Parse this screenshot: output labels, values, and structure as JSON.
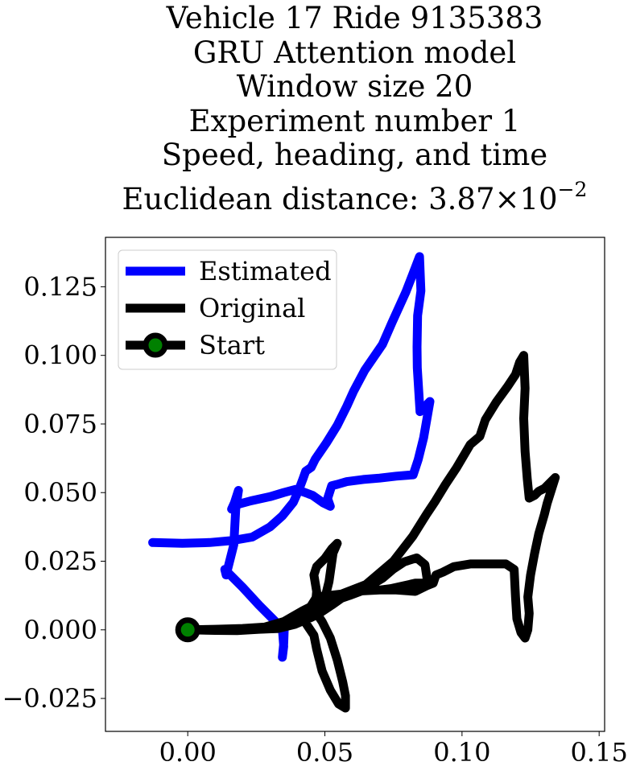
{
  "chart_data": {
    "type": "line",
    "title_lines": [
      "Vehicle 17 Ride 9135383",
      "GRU Attention model",
      "Window size 20",
      "Experiment number 1",
      "Speed, heading, and time"
    ],
    "distance_label": "Euclidean distance: ",
    "distance_mantissa": "3.87",
    "distance_times": "×",
    "distance_base": "10",
    "distance_exponent": "−2",
    "xlim": [
      -0.03,
      0.152
    ],
    "ylim": [
      -0.037,
      0.143
    ],
    "xticks": [
      0.0,
      0.05,
      0.1,
      0.15
    ],
    "xtick_labels": [
      "0.00",
      "0.05",
      "0.10",
      "0.15"
    ],
    "yticks": [
      -0.025,
      0.0,
      0.025,
      0.05,
      0.075,
      0.1,
      0.125
    ],
    "ytick_labels": [
      "−0.025",
      "0.000",
      "0.025",
      "0.050",
      "0.075",
      "0.100",
      "0.125"
    ],
    "legend_position": "upper-left",
    "series": [
      {
        "name": "Estimated",
        "color": "#0000ff",
        "points": [
          [
            -0.0128,
            0.0318
          ],
          [
            -0.002,
            0.0315
          ],
          [
            0.008,
            0.0318
          ],
          [
            0.016,
            0.0325
          ],
          [
            0.0235,
            0.0338
          ],
          [
            0.03,
            0.0375
          ],
          [
            0.0345,
            0.0415
          ],
          [
            0.0385,
            0.0465
          ],
          [
            0.0405,
            0.051
          ],
          [
            0.042,
            0.055
          ],
          [
            0.043,
            0.0578
          ],
          [
            0.045,
            0.0592
          ],
          [
            0.0465,
            0.0622
          ],
          [
            0.0505,
            0.068
          ],
          [
            0.0545,
            0.0745
          ],
          [
            0.058,
            0.0815
          ],
          [
            0.0605,
            0.087
          ],
          [
            0.0645,
            0.0945
          ],
          [
            0.071,
            0.104
          ],
          [
            0.0745,
            0.112
          ],
          [
            0.0795,
            0.123
          ],
          [
            0.083,
            0.132
          ],
          [
            0.0845,
            0.136
          ],
          [
            0.085,
            0.1235
          ],
          [
            0.0838,
            0.1145
          ],
          [
            0.0836,
            0.103
          ],
          [
            0.0837,
            0.0955
          ],
          [
            0.0847,
            0.0795
          ],
          [
            0.0883,
            0.0832
          ],
          [
            0.086,
            0.07
          ],
          [
            0.084,
            0.062
          ],
          [
            0.0822,
            0.0565
          ],
          [
            0.076,
            0.056
          ],
          [
            0.07,
            0.0553
          ],
          [
            0.064,
            0.0548
          ],
          [
            0.058,
            0.054
          ],
          [
            0.0545,
            0.053
          ],
          [
            0.0525,
            0.0525
          ],
          [
            0.051,
            0.0478
          ],
          [
            0.052,
            0.045
          ],
          [
            0.0495,
            0.0462
          ],
          [
            0.0455,
            0.049
          ],
          [
            0.0395,
            0.0512
          ],
          [
            0.035,
            0.05
          ],
          [
            0.03,
            0.0485
          ],
          [
            0.023,
            0.047
          ],
          [
            0.0175,
            0.0455
          ],
          [
            0.016,
            0.044
          ],
          [
            0.017,
            0.0462
          ],
          [
            0.0185,
            0.0508
          ],
          [
            0.0175,
            0.044
          ],
          [
            0.0168,
            0.031
          ],
          [
            0.014,
            0.02
          ],
          [
            0.0135,
            0.022
          ],
          [
            0.02,
            0.0155
          ],
          [
            0.026,
            0.009
          ],
          [
            0.032,
            0.003
          ],
          [
            0.0345,
            0.0005
          ],
          [
            0.035,
            -0.006
          ],
          [
            0.0345,
            -0.01
          ],
          [
            0.035,
            -0.005
          ],
          [
            0.0352,
            0.0005
          ],
          [
            0.032,
            0.0005
          ],
          [
            0.026,
            0.0003
          ],
          [
            0.02,
            0.0002
          ],
          [
            0.012,
            0.0001
          ],
          [
            0.0,
            0.0
          ]
        ]
      },
      {
        "name": "Original",
        "color": "#000000",
        "points": [
          [
            0.0,
            0.0
          ],
          [
            0.01,
            -0.0002
          ],
          [
            0.018,
            -0.0003
          ],
          [
            0.026,
            0.0002
          ],
          [
            0.033,
            0.0005
          ],
          [
            0.039,
            0.002
          ],
          [
            0.045,
            0.0045
          ],
          [
            0.048,
            0.006
          ],
          [
            0.0525,
            0.009
          ],
          [
            0.056,
            0.0115
          ],
          [
            0.059,
            0.0125
          ],
          [
            0.063,
            0.014
          ],
          [
            0.066,
            0.0158
          ],
          [
            0.071,
            0.0188
          ],
          [
            0.075,
            0.0222
          ],
          [
            0.079,
            0.0248
          ],
          [
            0.0835,
            0.0262
          ],
          [
            0.0865,
            0.0237
          ],
          [
            0.0875,
            0.017
          ],
          [
            0.083,
            0.017
          ],
          [
            0.074,
            0.015
          ],
          [
            0.07,
            0.0145
          ],
          [
            0.06,
            0.014
          ],
          [
            0.051,
            0.0115
          ],
          [
            0.048,
            0.01
          ],
          [
            0.0465,
            0.0085
          ],
          [
            0.047,
            0.014
          ],
          [
            0.046,
            0.02
          ],
          [
            0.047,
            0.023
          ],
          [
            0.05,
            0.026
          ],
          [
            0.0525,
            0.0295
          ],
          [
            0.0545,
            0.0315
          ],
          [
            0.053,
            0.028
          ],
          [
            0.0515,
            0.0175
          ],
          [
            0.05,
            0.0115
          ],
          [
            0.047,
            0.009
          ],
          [
            0.047,
            0.006
          ],
          [
            0.049,
            0.003
          ],
          [
            0.052,
            -0.003
          ],
          [
            0.0545,
            -0.011
          ],
          [
            0.0565,
            -0.019
          ],
          [
            0.0575,
            -0.024
          ],
          [
            0.0575,
            -0.0285
          ],
          [
            0.055,
            -0.027
          ],
          [
            0.052,
            -0.022
          ],
          [
            0.049,
            -0.015
          ],
          [
            0.047,
            -0.007
          ],
          [
            0.046,
            -0.002
          ],
          [
            0.044,
            0.001
          ],
          [
            0.042,
            0.004
          ],
          [
            0.047,
            0.012
          ],
          [
            0.056,
            0.013
          ],
          [
            0.065,
            0.0165
          ],
          [
            0.075,
            0.025
          ],
          [
            0.082,
            0.034
          ],
          [
            0.087,
            0.042
          ],
          [
            0.09,
            0.0465
          ],
          [
            0.094,
            0.053
          ],
          [
            0.098,
            0.059
          ],
          [
            0.103,
            0.0675
          ],
          [
            0.1065,
            0.0705
          ],
          [
            0.1085,
            0.0765
          ],
          [
            0.1125,
            0.083
          ],
          [
            0.1165,
            0.0885
          ],
          [
            0.1195,
            0.093
          ],
          [
            0.121,
            0.0975
          ],
          [
            0.1225,
            0.1
          ],
          [
            0.123,
            0.088
          ],
          [
            0.1225,
            0.077
          ],
          [
            0.123,
            0.065
          ],
          [
            0.1238,
            0.055
          ],
          [
            0.1245,
            0.048
          ],
          [
            0.1265,
            0.049
          ],
          [
            0.128,
            0.0505
          ],
          [
            0.13,
            0.0515
          ],
          [
            0.132,
            0.0535
          ],
          [
            0.134,
            0.0555
          ],
          [
            0.131,
            0.046
          ],
          [
            0.13,
            0.042
          ],
          [
            0.128,
            0.035
          ],
          [
            0.1265,
            0.028
          ],
          [
            0.125,
            0.02
          ],
          [
            0.1245,
            0.016
          ],
          [
            0.124,
            0.012
          ],
          [
            0.1245,
            0.006
          ],
          [
            0.124,
            0.0
          ],
          [
            0.123,
            -0.003
          ],
          [
            0.1215,
            -0.001
          ],
          [
            0.12,
            0.004
          ],
          [
            0.1195,
            0.012
          ],
          [
            0.1195,
            0.012
          ],
          [
            0.119,
            0.022
          ],
          [
            0.116,
            0.024
          ],
          [
            0.11,
            0.024
          ],
          [
            0.103,
            0.024
          ],
          [
            0.097,
            0.023
          ],
          [
            0.093,
            0.021
          ],
          [
            0.0905,
            0.02
          ],
          [
            0.0895,
            0.017
          ],
          [
            0.087,
            0.016
          ],
          [
            0.083,
            0.014
          ],
          [
            0.076,
            0.0145
          ],
          [
            0.07,
            0.0145
          ],
          [
            0.062,
            0.015
          ],
          [
            0.056,
            0.013
          ],
          [
            0.048,
            0.01
          ],
          [
            0.042,
            0.007
          ],
          [
            0.035,
            0.003
          ],
          [
            0.028,
            0.001
          ],
          [
            0.02,
            0.0005
          ],
          [
            0.01,
            0.0002
          ],
          [
            0.0,
            0.0
          ]
        ]
      }
    ],
    "start_point": {
      "name": "Start",
      "x": 0.0,
      "y": 0.0,
      "color": "#008000"
    }
  }
}
